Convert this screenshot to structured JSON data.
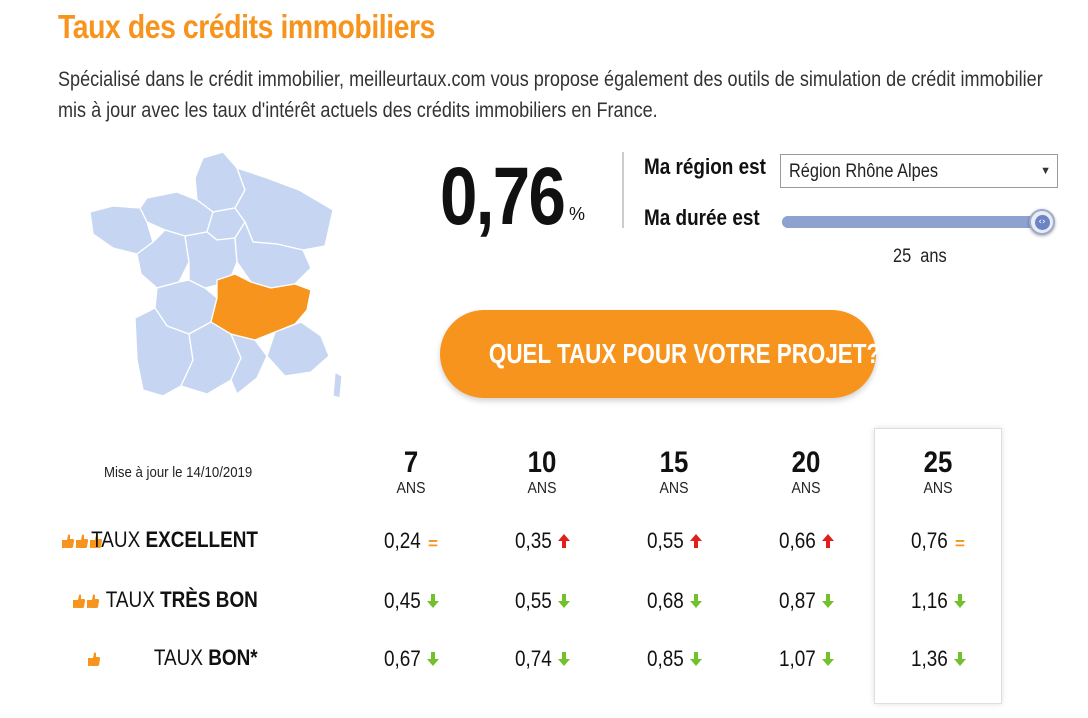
{
  "title": "Taux des crédits immobiliers",
  "intro": "Spécialisé dans le crédit immobilier, meilleurtaux.com vous propose également des outils de simulation de crédit immobilier mis à jour avec les taux d'intérêt actuels des crédits immobiliers en France.",
  "rate": {
    "value": "0,76",
    "unit": "%"
  },
  "region": {
    "label": "Ma région est",
    "selected": "Région Rhône Alpes"
  },
  "duree": {
    "label": "Ma durée est",
    "value": "25",
    "unit": "ans",
    "slider_fraction": 1.0
  },
  "cta_label": "QUEL TAUX POUR VOTRE PROJET?",
  "table": {
    "updated": "Mise à jour le 14/10/2019",
    "columns": [
      {
        "num": "7",
        "unit": "ANS"
      },
      {
        "num": "10",
        "unit": "ANS"
      },
      {
        "num": "15",
        "unit": "ANS"
      },
      {
        "num": "20",
        "unit": "ANS"
      },
      {
        "num": "25",
        "unit": "ANS"
      }
    ],
    "highlighted_column": 4,
    "rows": [
      {
        "prefix": "TAUX ",
        "label": "EXCELLENT",
        "thumbs": 3,
        "values": [
          "0,24",
          "0,35",
          "0,55",
          "0,66",
          "0,76"
        ],
        "trends": [
          "equal",
          "up",
          "up",
          "up",
          "equal"
        ]
      },
      {
        "prefix": "TAUX ",
        "label": "TRÈS BON",
        "thumbs": 2,
        "values": [
          "0,45",
          "0,55",
          "0,68",
          "0,87",
          "1,16"
        ],
        "trends": [
          "down",
          "down",
          "down",
          "down",
          "down"
        ]
      },
      {
        "prefix": "TAUX ",
        "label": "BON*",
        "thumbs": 1,
        "values": [
          "0,67",
          "0,74",
          "0,85",
          "1,07",
          "1,36"
        ],
        "trends": [
          "down",
          "down",
          "down",
          "down",
          "down"
        ]
      }
    ]
  },
  "colors": {
    "accent": "#f7941d",
    "map_region": "#c2d3f0",
    "map_selected": "#f7941d",
    "trend_up": "#e0211b",
    "trend_down": "#72c02c",
    "trend_equal": "#f7941d"
  }
}
